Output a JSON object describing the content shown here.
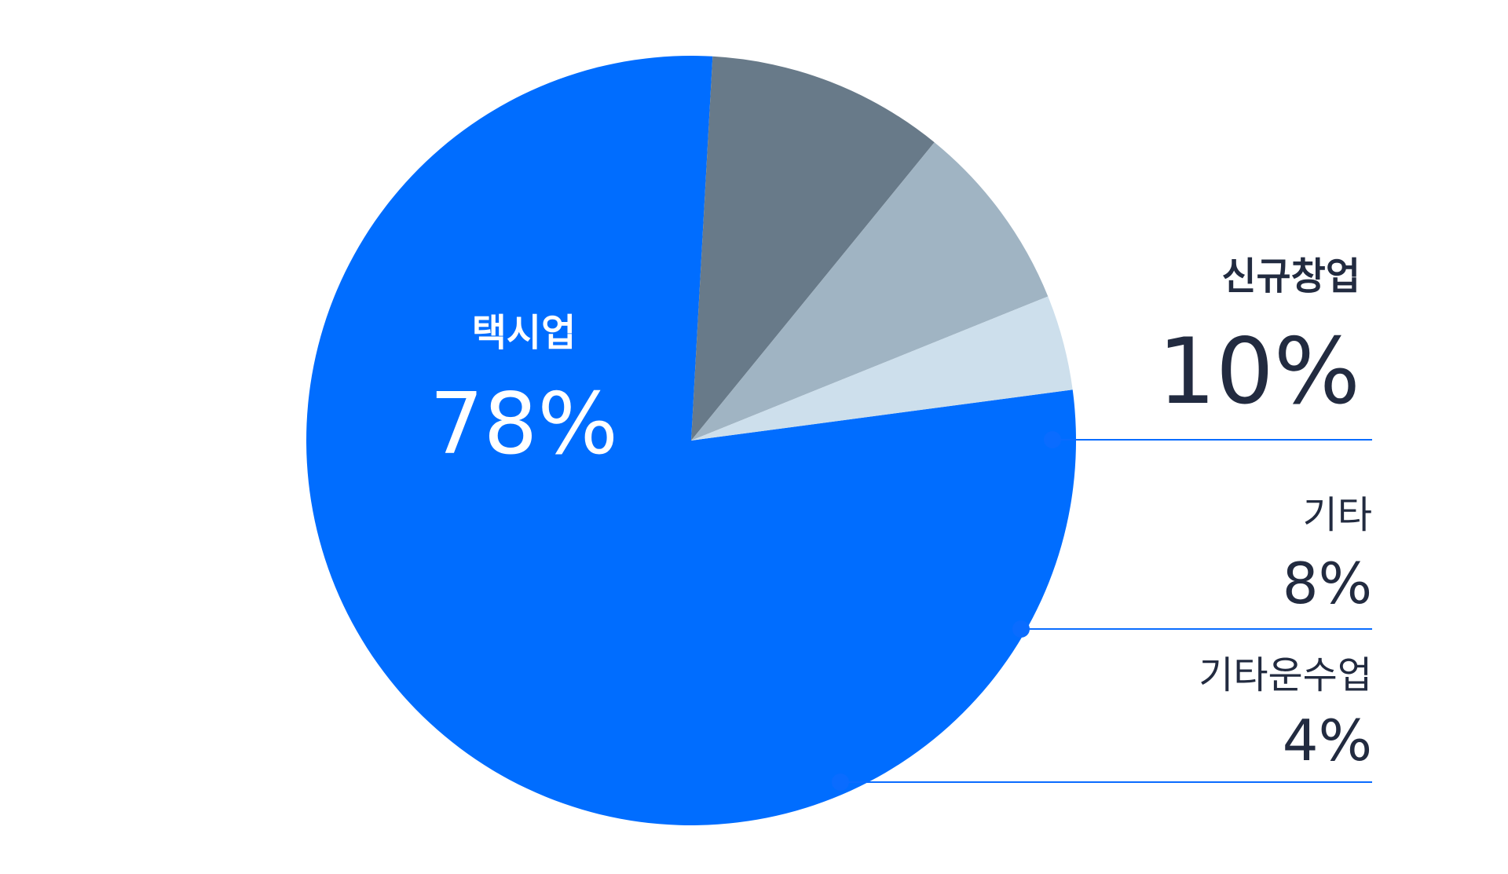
{
  "chart_data": {
    "type": "pie",
    "title": "",
    "slices": [
      {
        "label": "택시업",
        "value": 78,
        "display": "78%",
        "color": "#006dff",
        "label_color": "#ffffff"
      },
      {
        "label": "신규창업",
        "value": 10,
        "display": "10%",
        "color": "#687a89",
        "label_color": "#222b40"
      },
      {
        "label": "기타",
        "value": 8,
        "display": "8%",
        "color": "#a0b4c3",
        "label_color": "#222b40"
      },
      {
        "label": "기타운수업",
        "value": 4,
        "display": "4%",
        "color": "#cddfec",
        "label_color": "#222b40"
      }
    ],
    "start_angle_deg": -7.6,
    "direction": "clockwise",
    "legend": "right",
    "accent_color": "#0a6cff"
  }
}
